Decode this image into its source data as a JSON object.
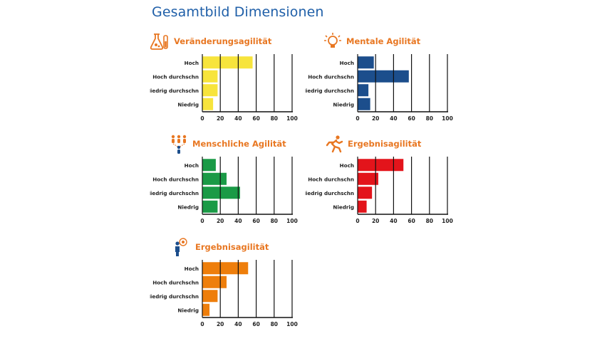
{
  "page": {
    "title": "Gesamtbild Dimensionen"
  },
  "colors": {
    "title": "#1f5fa8",
    "accent": "#e87722"
  },
  "panels": [
    {
      "title": "Veränderungsagilität",
      "icon": "lab-flask-icon"
    },
    {
      "title": "Mentale Agilität",
      "icon": "lightbulb-icon"
    },
    {
      "title": "Menschliche Agilität",
      "icon": "people-network-icon"
    },
    {
      "title": "Ergebnisagilität",
      "icon": "running-person-icon"
    },
    {
      "title": "Ergebnisagilität",
      "icon": "person-target-icon"
    }
  ],
  "chart_data": [
    {
      "type": "bar",
      "orientation": "horizontal",
      "color": "#f7e43c",
      "categories": [
        "Hoch",
        "Hoch durchschn",
        "Niedrig durchschn",
        "Niedrig"
      ],
      "values": [
        56,
        17,
        17,
        12
      ],
      "xlim": [
        0,
        100
      ],
      "xticks": [
        0,
        20,
        40,
        60,
        80,
        100
      ],
      "grid": true
    },
    {
      "type": "bar",
      "orientation": "horizontal",
      "color": "#1c4e8c",
      "categories": [
        "Hoch",
        "Hoch durchschn",
        "Niedrig durchschn",
        "Niedrig"
      ],
      "values": [
        18,
        57,
        12,
        14
      ],
      "xlim": [
        0,
        100
      ],
      "xticks": [
        0,
        20,
        40,
        60,
        80,
        100
      ],
      "grid": true
    },
    {
      "type": "bar",
      "orientation": "horizontal",
      "color": "#1a9a46",
      "categories": [
        "Hoch",
        "Hoch durchschn",
        "Niedrig durchschn",
        "Niedrig"
      ],
      "values": [
        15,
        27,
        42,
        17
      ],
      "xlim": [
        0,
        100
      ],
      "xticks": [
        0,
        20,
        40,
        60,
        80,
        100
      ],
      "grid": true
    },
    {
      "type": "bar",
      "orientation": "horizontal",
      "color": "#e3141b",
      "categories": [
        "Hoch",
        "Hoch durchschn",
        "Niedrig durchschn",
        "Niedrig"
      ],
      "values": [
        51,
        23,
        16,
        10
      ],
      "xlim": [
        0,
        100
      ],
      "xticks": [
        0,
        20,
        40,
        60,
        80,
        100
      ],
      "grid": true
    },
    {
      "type": "bar",
      "orientation": "horizontal",
      "color": "#ee7e0b",
      "categories": [
        "Hoch",
        "Hoch durchschn",
        "Niedrig durchschn",
        "Niedrig"
      ],
      "values": [
        51,
        27,
        17,
        8
      ],
      "xlim": [
        0,
        100
      ],
      "xticks": [
        0,
        20,
        40,
        60,
        80,
        100
      ],
      "grid": true
    }
  ]
}
